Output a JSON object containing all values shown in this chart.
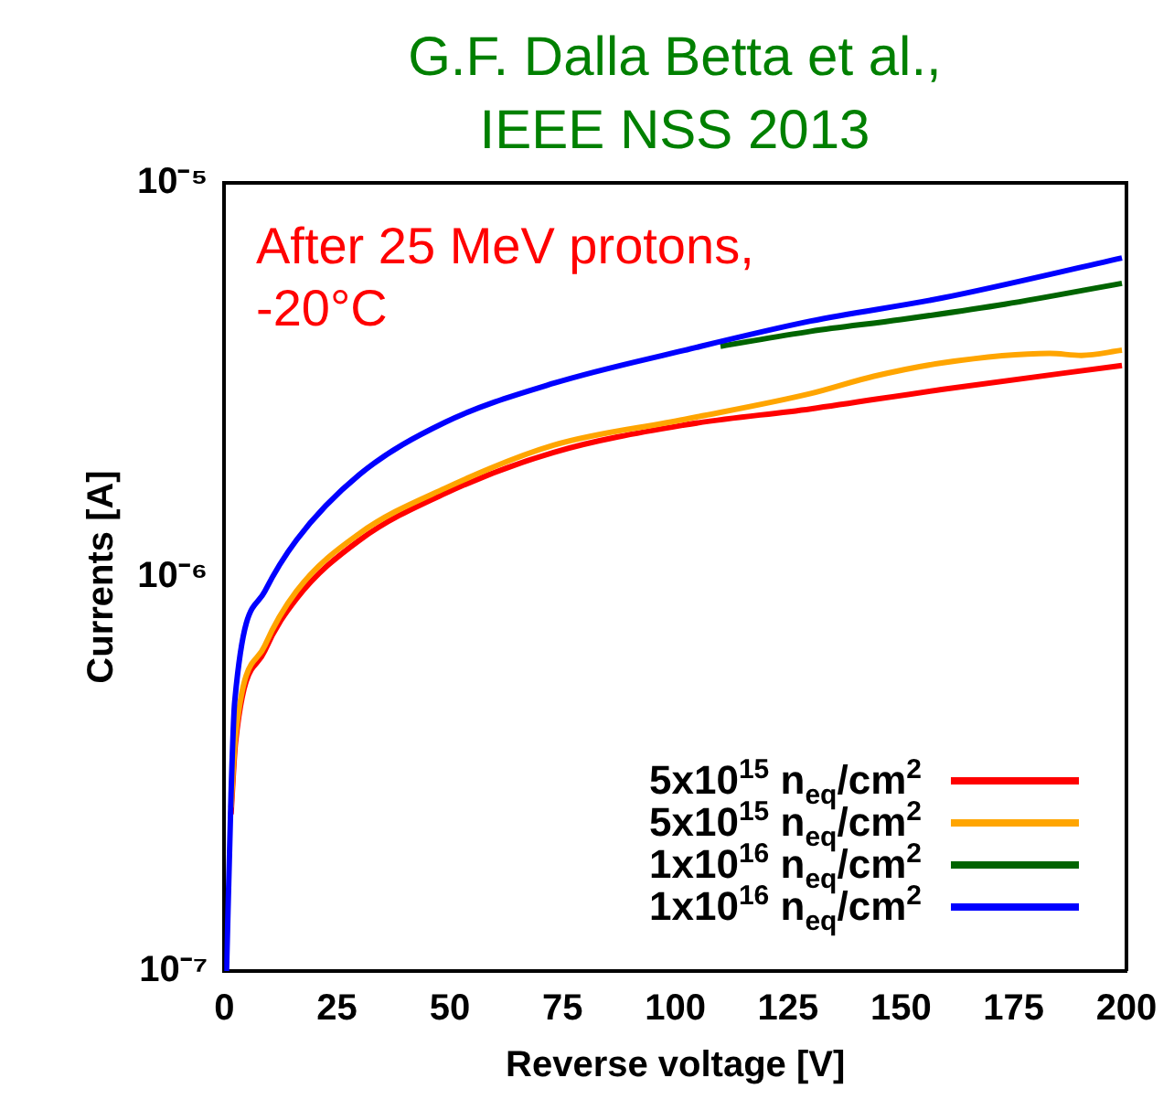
{
  "chart_data": {
    "type": "line",
    "title": "G.F. Dalla Betta et al.,\nIEEE NSS 2013",
    "xlabel": "Reverse voltage [V]",
    "ylabel": "Currents [A]",
    "annotations": [
      "After 25 MeV protons,\n-20°C"
    ],
    "log": "y",
    "xlim": [
      0,
      200
    ],
    "xticks": [
      0,
      25,
      50,
      75,
      100,
      125,
      150,
      175,
      200
    ],
    "ylim": [
      1e-07,
      1e-05
    ],
    "yticks": [
      {
        "value": 1e-07,
        "label": "10⁻⁷"
      },
      {
        "value": 1e-06,
        "label": "10⁻⁶"
      },
      {
        "value": 1e-05,
        "label": "10⁻⁵"
      }
    ],
    "grid": false,
    "legend": "bottom right",
    "marker": "none",
    "line_style": "solid",
    "series": [
      {
        "name": "5x10$^{15}$ n$_{eq}$/cm$^{2}$",
        "color": "#ff0000",
        "x": [
          1.5,
          2.5,
          9,
          16,
          30,
          49,
          73,
          102,
          130,
          159,
          199
        ],
        "values": [
          2.5e-07,
          3.8e-07,
          6.5e-07,
          8.8e-07,
          1.24e-06,
          1.63e-06,
          2.07e-06,
          2.43e-06,
          2.67e-06,
          2.99e-06,
          3.44e-06
        ]
      },
      {
        "name": "5x10$^{15}$ n$_{eq}$/cm$^{2}$",
        "color": "#ffa500",
        "x": [
          1.5,
          2.5,
          9,
          16,
          30,
          49,
          73,
          102,
          130,
          144,
          159,
          183,
          190,
          199
        ],
        "values": [
          2.6e-07,
          3.95e-07,
          6.7e-07,
          9.2e-07,
          1.29e-06,
          1.68e-06,
          2.16e-06,
          2.51e-06,
          2.92e-06,
          3.23e-06,
          3.49e-06,
          3.69e-06,
          3.65e-06,
          3.76e-06
        ]
      },
      {
        "name": "1x10$^{16}$ n$_{eq}$/cm$^{2}$",
        "color": "#006400",
        "x": [
          110,
          130,
          150,
          173,
          199
        ],
        "values": [
          3.85e-06,
          4.2e-06,
          4.5e-06,
          4.92e-06,
          5.56e-06
        ]
      },
      {
        "name": "1x10$^{16}$ n$_{eq}$/cm$^{2}$",
        "color": "#0000ff",
        "x": [
          0.5,
          1.5,
          2.3,
          9,
          16,
          30,
          49,
          73,
          102,
          130,
          159,
          199
        ],
        "values": [
          1e-07,
          2.8e-07,
          4.8e-07,
          9.2e-07,
          1.24e-06,
          1.82e-06,
          2.47e-06,
          3.1e-06,
          3.76e-06,
          4.46e-06,
          5.1e-06,
          6.45e-06
        ]
      }
    ]
  }
}
